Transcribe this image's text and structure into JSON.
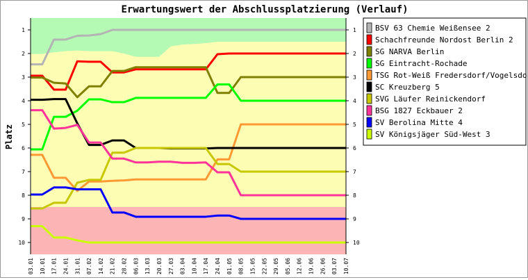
{
  "chart_data": {
    "type": "line",
    "title": "Erwartungswert der Abschlussplatzierung (Verlauf)",
    "ylabel": "Platz",
    "xlabel": "",
    "ylim": [
      10.5,
      0.5
    ],
    "y_ticks": [
      "1",
      "2",
      "3",
      "4",
      "5",
      "6",
      "7",
      "8",
      "9",
      "10"
    ],
    "x": [
      "03.01",
      "10.01",
      "17.01",
      "24.01",
      "31.01",
      "07.02",
      "14.02",
      "21.02",
      "28.02",
      "06.03",
      "13.03",
      "20.03",
      "27.03",
      "03.04",
      "10.04",
      "17.04",
      "24.04",
      "01.05",
      "08.05",
      "15.05",
      "22.05",
      "29.05",
      "05.06",
      "12.06",
      "19.06",
      "26.06",
      "03.07",
      "10.07"
    ],
    "legend_position": "right",
    "zones": {
      "promotion_boundary": [
        2.02,
        2.02,
        1.95,
        1.9,
        1.87,
        1.9,
        1.9,
        1.9,
        2.0,
        2.14,
        2.14,
        2.14,
        1.7,
        1.62,
        1.6,
        1.56,
        1.5,
        1.5,
        1.5,
        1.5,
        1.5,
        1.5,
        1.5,
        1.5,
        1.5,
        1.5,
        1.5,
        1.5
      ],
      "relegation_from": 8.5,
      "promotion_color": "#b4fab4",
      "middle_color": "#fdfdb4",
      "relegation_color": "#fdb4b4"
    },
    "series": [
      {
        "name": "BSV 63 Chemie Weißensee 2",
        "color": "#b4b4b4",
        "values": [
          2.46,
          2.46,
          1.41,
          1.41,
          1.25,
          1.24,
          1.18,
          1,
          1,
          1,
          1,
          1,
          1,
          1,
          1,
          1,
          1,
          1,
          1,
          1,
          1,
          1,
          1,
          1,
          1,
          1,
          1,
          1
        ]
      },
      {
        "name": "Schachfreunde Nordost Berlin 2",
        "color": "#ff0000",
        "values": [
          2.94,
          2.94,
          3.53,
          3.53,
          2.33,
          2.35,
          2.35,
          2.8,
          2.8,
          2.67,
          2.67,
          2.67,
          2.67,
          2.67,
          2.67,
          2.67,
          2.03,
          2.0,
          2,
          2,
          2,
          2,
          2,
          2,
          2,
          2,
          2,
          2
        ]
      },
      {
        "name": "SG NARVA Berlin",
        "color": "#808000",
        "values": [
          3.02,
          3.02,
          3.24,
          3.27,
          3.85,
          3.39,
          3.39,
          2.74,
          2.74,
          2.58,
          2.58,
          2.58,
          2.58,
          2.58,
          2.58,
          2.58,
          3.67,
          3.67,
          3,
          3,
          3,
          3,
          3,
          3,
          3,
          3,
          3,
          3
        ]
      },
      {
        "name": "SG Eintracht-Rochade",
        "color": "#00ff00",
        "values": [
          6.06,
          6.06,
          4.68,
          4.68,
          4.42,
          3.94,
          3.94,
          4.06,
          4.06,
          3.88,
          3.88,
          3.88,
          3.88,
          3.88,
          3.88,
          3.88,
          3.31,
          3.31,
          4,
          4,
          4,
          4,
          4,
          4,
          4,
          4,
          4,
          4
        ]
      },
      {
        "name": "TSG Rot-Weiß Fredersdorf/Vogelsdorf",
        "color": "#ff9933",
        "values": [
          6.29,
          6.29,
          7.26,
          7.26,
          7.82,
          7.42,
          7.42,
          7.39,
          7.37,
          7.33,
          7.33,
          7.33,
          7.33,
          7.33,
          7.33,
          7.33,
          6.48,
          6.48,
          5,
          5,
          5,
          5,
          5,
          5,
          5,
          5,
          5,
          5
        ]
      },
      {
        "name": "SC Kreuzberg 5",
        "color": "#000000",
        "values": [
          3.96,
          3.96,
          3.93,
          3.93,
          4.96,
          5.87,
          5.87,
          5.68,
          5.68,
          6.0,
          6.0,
          6.0,
          6.02,
          6.02,
          6.02,
          6.02,
          6.0,
          6.0,
          6,
          6,
          6,
          6,
          6,
          6,
          6,
          6,
          6,
          6
        ]
      },
      {
        "name": "SVG Läufer Reinickendorf",
        "color": "#c8c800",
        "values": [
          8.56,
          8.56,
          8.32,
          8.32,
          7.47,
          7.35,
          7.35,
          6.2,
          6.2,
          6.0,
          6.0,
          6.0,
          6.0,
          6.0,
          6.0,
          6.0,
          6.68,
          6.68,
          7,
          7,
          7,
          7,
          7,
          7,
          7,
          7,
          7,
          7
        ]
      },
      {
        "name": "BSG 1827 Eckbauer 2",
        "color": "#ff3399",
        "values": [
          4.4,
          4.4,
          5.18,
          5.15,
          5.02,
          5.77,
          5.77,
          6.45,
          6.45,
          6.61,
          6.61,
          6.58,
          6.58,
          6.63,
          6.63,
          6.61,
          7.03,
          7.03,
          8,
          8,
          8,
          8,
          8,
          8,
          8,
          8,
          8,
          8
        ]
      },
      {
        "name": "SV Berolina Mitte 4",
        "color": "#0000ff",
        "values": [
          7.97,
          7.97,
          7.67,
          7.67,
          7.75,
          7.75,
          7.75,
          8.73,
          8.73,
          8.91,
          8.91,
          8.91,
          8.91,
          8.91,
          8.91,
          8.91,
          8.86,
          8.86,
          9,
          9,
          9,
          9,
          9,
          9,
          9,
          9,
          9,
          9
        ]
      },
      {
        "name": "SV Königsjäger Süd-West 3",
        "color": "#ccff00",
        "values": [
          9.31,
          9.31,
          9.79,
          9.79,
          9.91,
          10,
          10,
          10,
          10,
          10,
          10,
          10,
          10,
          10,
          10,
          10,
          10,
          10,
          10,
          10,
          10,
          10,
          10,
          10,
          10,
          10,
          10,
          10
        ]
      }
    ]
  }
}
